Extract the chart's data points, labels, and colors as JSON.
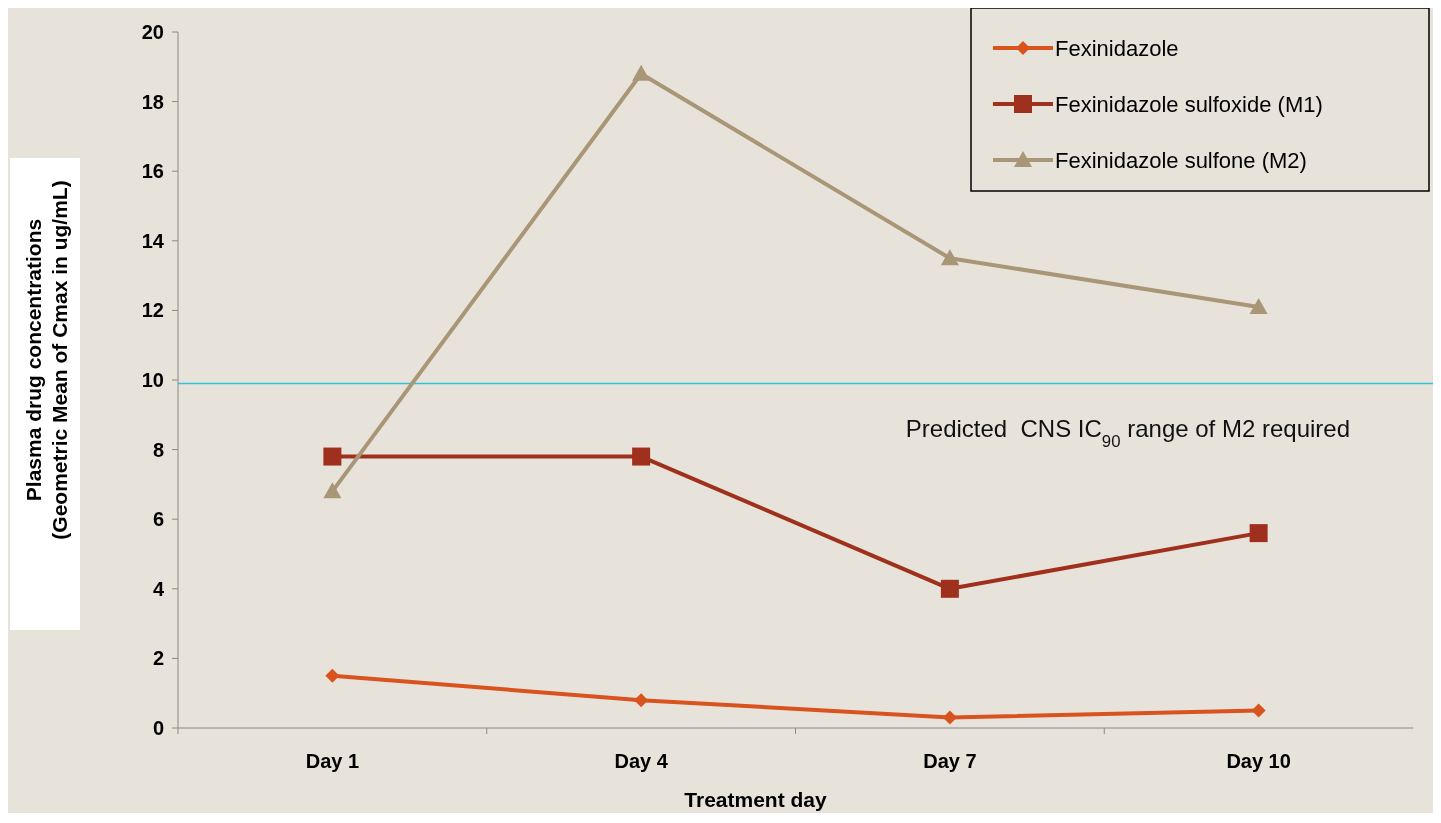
{
  "chart_data": {
    "type": "line",
    "xlabel": "Treatment day",
    "ylabel": "Plasma drug concentrations\n(Geometric Mean of Cmax in ug/mL)",
    "categories": [
      "Day 1",
      "Day 4",
      "Day 7",
      "Day 10"
    ],
    "series": [
      {
        "name": "Fexinidazole",
        "color": "#d9531e",
        "marker": "diamond",
        "values": [
          1.5,
          0.8,
          0.3,
          0.5
        ]
      },
      {
        "name": "Fexinidazole sulfoxide (M1)",
        "color": "#a0301e",
        "marker": "square",
        "values": [
          7.8,
          7.8,
          4.0,
          5.6
        ]
      },
      {
        "name": "Fexinidazole sulfone (M2)",
        "color": "#a89677",
        "marker": "triangle",
        "values": [
          6.8,
          18.8,
          13.5,
          12.1
        ]
      }
    ],
    "ylim": [
      0,
      20
    ],
    "yticks": [
      0,
      2,
      4,
      6,
      8,
      10,
      12,
      14,
      16,
      18,
      20
    ],
    "grid": false,
    "legend": "top right",
    "ref_lines": [
      {
        "axis": "y",
        "value": 9.9,
        "label": "Predicted  CNS IC$_{90}$ range of M2 required",
        "color": "#2ec4d8"
      }
    ]
  }
}
